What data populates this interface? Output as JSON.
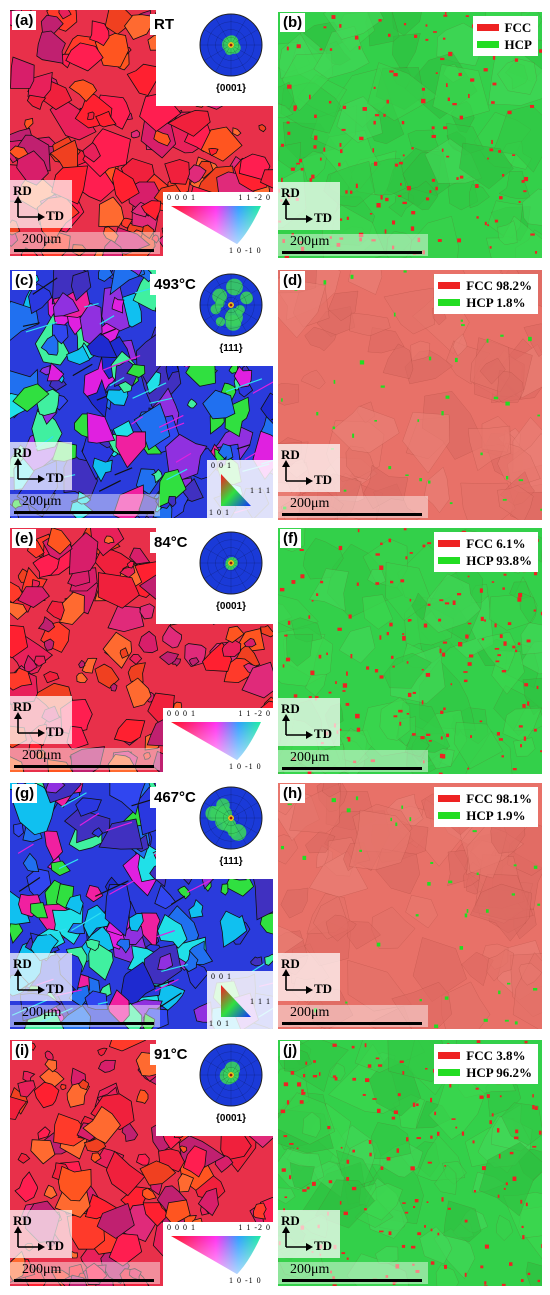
{
  "figure": {
    "rows": [
      {
        "left": {
          "letter": "(a)",
          "temperature": "RT",
          "pole_figure": "{0001}",
          "key": "hcp",
          "map": "hcp-ipf"
        },
        "right": {
          "letter": "(b)",
          "legend": [
            {
              "label": "FCC",
              "color": "#ee2222"
            },
            {
              "label": "HCP",
              "color": "#22dd22"
            }
          ],
          "map": "green"
        }
      },
      {
        "left": {
          "letter": "(c)",
          "temperature": "493",
          "temperature_unit": "°C",
          "pole_figure": "{111}",
          "key": "fcc",
          "map": "fcc-ipf"
        },
        "right": {
          "letter": "(d)",
          "legend": [
            {
              "label": "FCC 98.2%",
              "color": "#ee2222"
            },
            {
              "label": "HCP 1.8%",
              "color": "#22dd22"
            }
          ],
          "map": "red"
        }
      },
      {
        "left": {
          "letter": "(e)",
          "temperature": "84",
          "temperature_unit": "°C",
          "pole_figure": "{0001}",
          "key": "hcp",
          "map": "hcp-ipf"
        },
        "right": {
          "letter": "(f)",
          "legend": [
            {
              "label": "FCC 6.1%",
              "color": "#ee2222"
            },
            {
              "label": "HCP 93.8%",
              "color": "#22dd22"
            }
          ],
          "map": "green"
        }
      },
      {
        "left": {
          "letter": "(g)",
          "temperature": "467",
          "temperature_unit": "°C",
          "pole_figure": "{111}",
          "key": "fcc",
          "map": "fcc-ipf"
        },
        "right": {
          "letter": "(h)",
          "legend": [
            {
              "label": "FCC 98.1%",
              "color": "#ee2222"
            },
            {
              "label": "HCP 1.9%",
              "color": "#22dd22"
            }
          ],
          "map": "red"
        }
      },
      {
        "left": {
          "letter": "(i)",
          "temperature": "91",
          "temperature_unit": "°C",
          "pole_figure": "{0001}",
          "key": "hcp",
          "map": "hcp-ipf"
        },
        "right": {
          "letter": "(j)",
          "legend": [
            {
              "label": "FCC 3.8%",
              "color": "#ee2222"
            },
            {
              "label": "HCP 96.2%",
              "color": "#22dd22"
            }
          ],
          "map": "green"
        }
      }
    ],
    "axes": {
      "rd": "RD",
      "td": "TD"
    },
    "scale_bar": "200μm",
    "hcp_key": {
      "top_left": "0 0 0 1",
      "top_right": "1 1 -2 0",
      "bottom": "1 0 -1 0"
    },
    "fcc_key": {
      "top": "0 0 1",
      "bottom_left": "1 0 1",
      "right": "1 1 1"
    },
    "colors": {
      "fcc": "#ee2222",
      "hcp": "#22dd22",
      "hcp_map_base": "#e8304a",
      "fcc_map_base": "#2a3bdc",
      "phase_red": "#e87168",
      "phase_green": "#33d04a"
    }
  }
}
